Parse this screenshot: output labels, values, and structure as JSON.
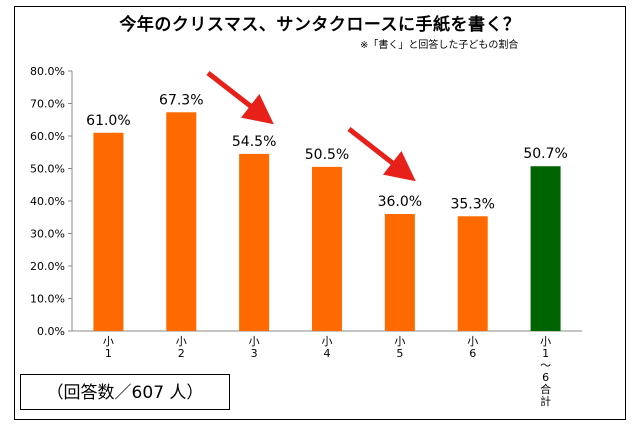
{
  "title": "今年のクリスマス、サンタクロースに手紙を書く？",
  "subtitle": "※「書く」と回答した子どもの割合",
  "note": "（回答数／607 人）",
  "chart_data": {
    "type": "bar",
    "categories": [
      "小1",
      "小2",
      "小3",
      "小4",
      "小5",
      "小6",
      "小1〜6合計"
    ],
    "values": [
      61.0,
      67.3,
      54.5,
      50.5,
      36.0,
      35.3,
      50.7
    ],
    "value_labels": [
      "61.0%",
      "67.3%",
      "54.5%",
      "50.5%",
      "36.0%",
      "35.3%",
      "50.7%"
    ],
    "ylim": [
      0,
      80
    ],
    "yticks": [
      "0.0%",
      "10.0%",
      "20.0%",
      "30.0%",
      "40.0%",
      "50.0%",
      "60.0%",
      "70.0%",
      "80.0%"
    ],
    "grid": false,
    "colors": {
      "bar": "#ff6a00",
      "total_bar": "#006400",
      "arrow": "#e8201a"
    }
  }
}
